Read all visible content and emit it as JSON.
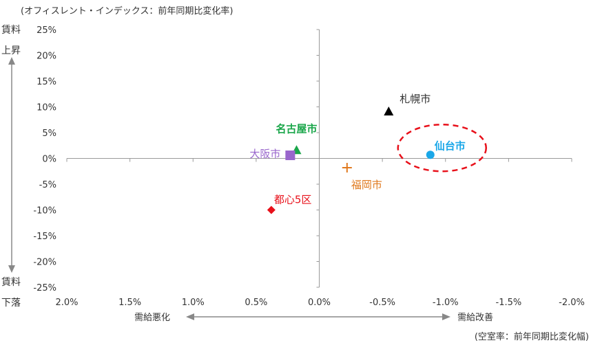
{
  "chart_data": {
    "type": "scatter",
    "title": "",
    "y_axis_note": "(オフィスレント・インデックス：前年同期比変化率)",
    "x_axis_note": "(空室率：前年同期比変化幅)",
    "xlim": [
      2.0,
      -2.0
    ],
    "ylim": [
      -25,
      25
    ],
    "x_ticks": [
      "2.0%",
      "1.5%",
      "1.0%",
      "0.5%",
      "0.0%",
      "-0.5%",
      "-1.0%",
      "-1.5%",
      "-2.0%"
    ],
    "y_ticks": [
      "25%",
      "20%",
      "15%",
      "10%",
      "5%",
      "0%",
      "-5%",
      "-10%",
      "-15%",
      "-20%",
      "-25%"
    ],
    "y_top_label": [
      "賃料",
      "上昇"
    ],
    "y_bottom_label": [
      "賃料",
      "下落"
    ],
    "x_left_label": "需給悪化",
    "x_right_label": "需給改善",
    "points": [
      {
        "label": "札幌市",
        "x": -0.55,
        "y": 9.0,
        "marker": "triangle",
        "color": "#000000",
        "bold": false
      },
      {
        "label": "仙台市",
        "x": -0.88,
        "y": 0.7,
        "marker": "circle",
        "color": "#1aa7e8",
        "bold": true
      },
      {
        "label": "名古屋市",
        "x": 0.18,
        "y": 1.5,
        "marker": "triangle",
        "color": "#1aa64a",
        "bold": true
      },
      {
        "label": "大阪市",
        "x": 0.23,
        "y": 0.6,
        "marker": "square",
        "color": "#9966cc",
        "bold": false
      },
      {
        "label": "福岡市",
        "x": -0.22,
        "y": -1.8,
        "marker": "plus",
        "color": "#e07a1f",
        "bold": false
      },
      {
        "label": "都心5区",
        "x": 0.38,
        "y": -10.0,
        "marker": "diamond",
        "color": "#e8101a",
        "bold": false
      }
    ],
    "highlight": {
      "label": "仙台市",
      "color": "#e8101a",
      "style": "dashed-ellipse"
    },
    "grid": false,
    "legend": "none"
  }
}
